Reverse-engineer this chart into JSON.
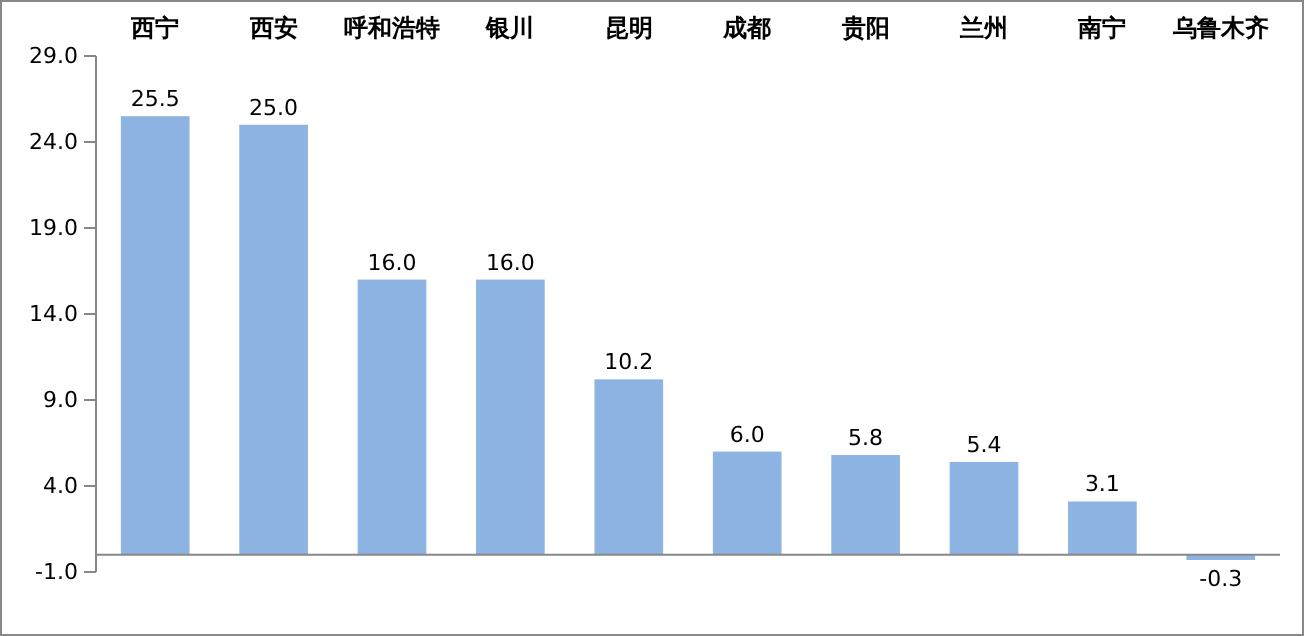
{
  "chart_data": {
    "type": "bar",
    "categories": [
      "西宁",
      "西安",
      "呼和浩特",
      "银川",
      "昆明",
      "成都",
      "贵阳",
      "兰州",
      "南宁",
      "乌鲁木齐"
    ],
    "values": [
      25.5,
      25.0,
      16.0,
      16.0,
      10.2,
      6.0,
      5.8,
      5.4,
      3.1,
      -0.3
    ],
    "value_labels": [
      "25.5",
      "25.0",
      "16.0",
      "16.0",
      "10.2",
      "6.0",
      "5.8",
      "5.4",
      "3.1",
      "-0.3"
    ],
    "color": "#8db3e2",
    "ylim": [
      -1,
      29
    ],
    "yticks": [
      {
        "value": -1,
        "label": "-1.0"
      },
      {
        "value": 4,
        "label": "4.0"
      },
      {
        "value": 9,
        "label": "9.0"
      },
      {
        "value": 14,
        "label": "14.0"
      },
      {
        "value": 19,
        "label": "19.0"
      },
      {
        "value": 24,
        "label": "24.0"
      },
      {
        "value": 29,
        "label": "29.0"
      }
    ],
    "grid": false
  }
}
